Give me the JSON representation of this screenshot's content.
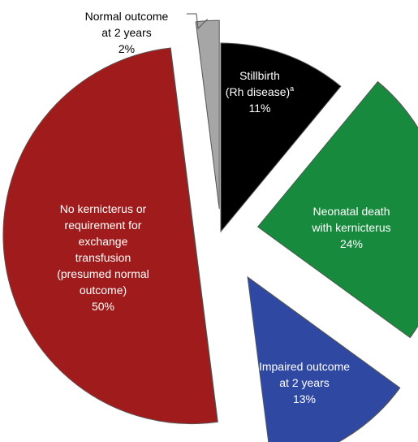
{
  "chart_data": {
    "type": "pie",
    "exploded": true,
    "slices": [
      {
        "id": "stillbirth",
        "label_lines": [
          "Stillbirth",
          "(Rh disease)"
        ],
        "superscript": "a",
        "value": 11,
        "value_label": "11%",
        "color": "#000000",
        "text_color": "#ffffff"
      },
      {
        "id": "neonatal-death",
        "label_lines": [
          "Neonatal death",
          "with kernicterus"
        ],
        "value": 24,
        "value_label": "24%",
        "color": "#178a3e",
        "text_color": "#ffffff"
      },
      {
        "id": "impaired-outcome",
        "label_lines": [
          "Impaired outcome",
          "at 2 years"
        ],
        "value": 13,
        "value_label": "13%",
        "color": "#2f49a3",
        "text_color": "#ffffff"
      },
      {
        "id": "no-kernicterus",
        "label_lines": [
          "No kernicterus or",
          "requirement for",
          "exchange",
          "transfusion",
          "(presumed normal",
          "outcome)"
        ],
        "value": 50,
        "value_label": "50%",
        "color": "#a01c1c",
        "text_color": "#ffffff"
      },
      {
        "id": "normal-outcome",
        "label_lines": [
          "Normal outcome",
          "at 2 years"
        ],
        "value": 2,
        "value_label": "2%",
        "color": "#a6a6a6",
        "text_color": "#000000",
        "label_outside": true
      }
    ]
  }
}
